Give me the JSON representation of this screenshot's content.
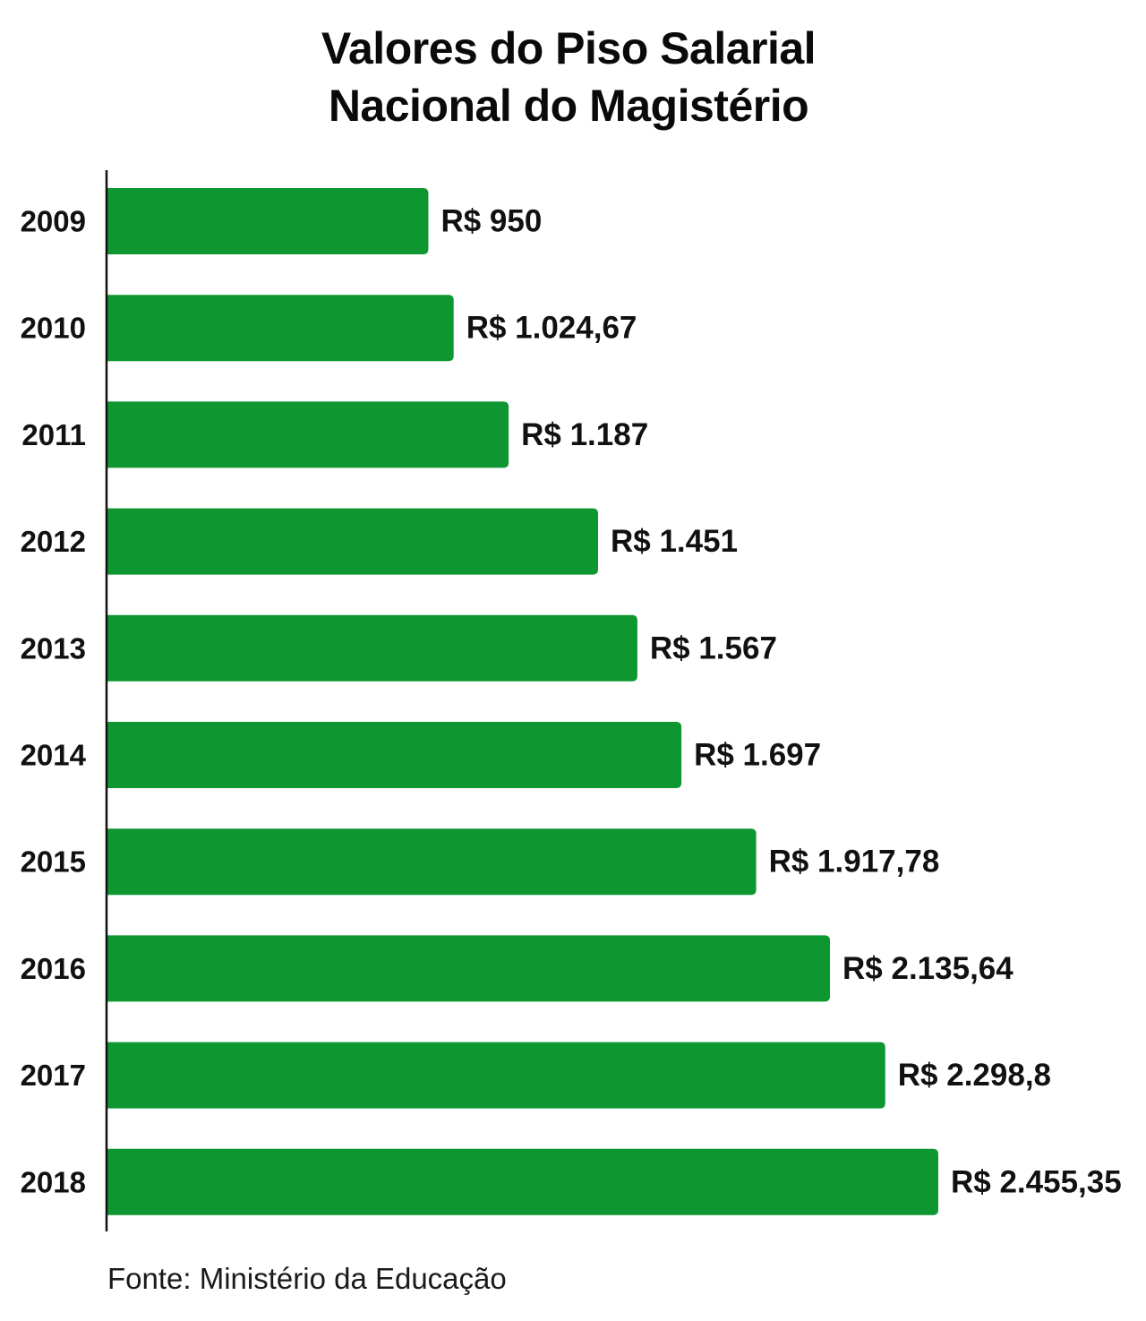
{
  "colors": {
    "bar": "#0e9630",
    "text": "#111111",
    "axis": "#111111",
    "background": "#ffffff"
  },
  "chart_data": {
    "type": "bar",
    "orientation": "horizontal",
    "title": "Valores do Piso Salarial Nacional do Magistério",
    "title_lines": [
      "Valores do Piso Salarial",
      "Nacional do Magistério"
    ],
    "categories": [
      "2009",
      "2010",
      "2011",
      "2012",
      "2013",
      "2014",
      "2015",
      "2016",
      "2017",
      "2018"
    ],
    "values": [
      950,
      1024.67,
      1187,
      1451,
      1567,
      1697,
      1917.78,
      2135.64,
      2298.8,
      2455.35
    ],
    "value_labels": [
      "R$ 950",
      "R$ 1.024,67",
      "R$ 1.187",
      "R$ 1.451",
      "R$ 1.567",
      "R$ 1.697",
      "R$ 1.917,78",
      "R$ 2.135,64",
      "R$ 2.298,8",
      "R$ 2.455,35"
    ],
    "xlim": [
      0,
      2455.35
    ],
    "grid": false,
    "legend": "none",
    "xlabel": "",
    "ylabel": ""
  },
  "source": "Fonte: Ministério da Educação"
}
